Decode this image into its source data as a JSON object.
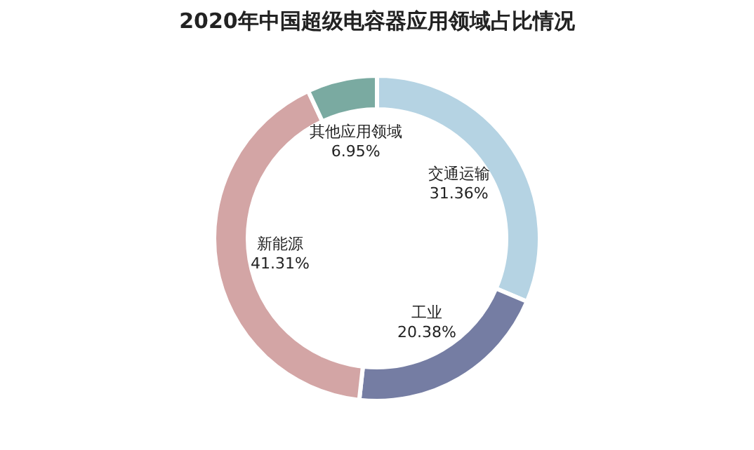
{
  "chart_data": {
    "type": "donut",
    "title": "2020年中国超级电容器应用领域占比情况",
    "categories": [
      "交通运输",
      "工业",
      "新能源",
      "其他应用领域"
    ],
    "values": [
      31.36,
      20.38,
      41.31,
      6.95
    ],
    "colors": [
      "#b5d3e3",
      "#757da3",
      "#d3a5a5",
      "#7aaaa1"
    ],
    "value_labels": [
      "31.36%",
      "20.38%",
      "41.31%",
      "6.95%"
    ],
    "legend": false
  }
}
